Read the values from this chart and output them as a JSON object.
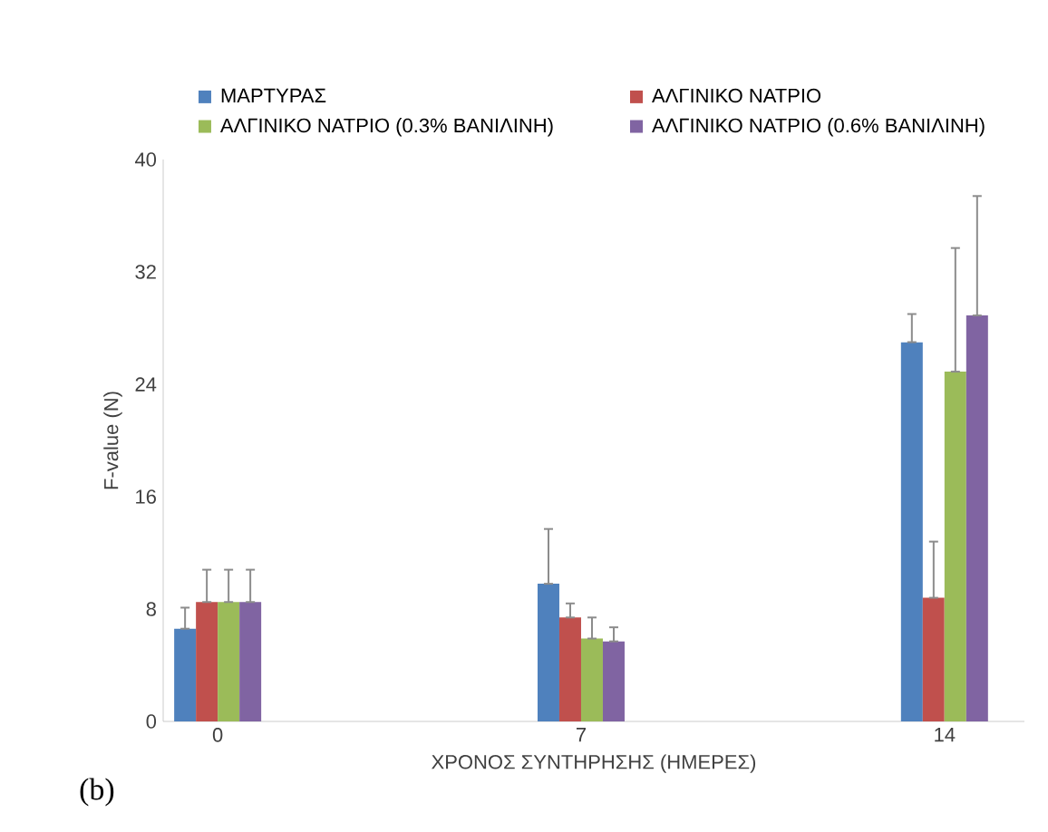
{
  "chart_data": {
    "type": "bar",
    "xlabel": "ΧΡΟΝΟΣ ΣΥΝΤΗΡΗΣΗΣ (ΗΜΕΡΕΣ)",
    "ylabel": "F-value (N)",
    "categories": [
      "0",
      "7",
      "14"
    ],
    "series": [
      {
        "name": "ΜΑΡΤΥΡΑΣ",
        "color": "#4f81bd",
        "values": [
          6.6,
          9.8,
          27
        ],
        "errors": [
          [
            6.6,
            8.1
          ],
          [
            9.8,
            13.7
          ],
          [
            27,
            29
          ]
        ]
      },
      {
        "name": "ΑΛΓΙΝΙΚΟ ΝΑΤΡΙΟ",
        "color": "#c0504d",
        "values": [
          8.5,
          7.4,
          8.8
        ],
        "errors": [
          [
            8.5,
            10.8
          ],
          [
            7.4,
            8.4
          ],
          [
            8.8,
            12.8
          ]
        ]
      },
      {
        "name": "ΑΛΓΙΝΙΚΟ ΝΑΤΡΙΟ (0.3% ΒΑΝΙΛΙΝΗ)",
        "color": "#9bbb59",
        "values": [
          8.5,
          5.9,
          24.9
        ],
        "errors": [
          [
            8.5,
            10.8
          ],
          [
            5.9,
            7.4
          ],
          [
            24.9,
            33.7
          ]
        ]
      },
      {
        "name": "ΑΛΓΙΝΙΚΟ ΝΑΤΡΙΟ (0.6% ΒΑΝΙΛΙΝΗ)",
        "color": "#8064a2",
        "values": [
          8.5,
          5.7,
          28.9
        ],
        "errors": [
          [
            8.5,
            10.8
          ],
          [
            5.7,
            6.7
          ],
          [
            28.9,
            37.4
          ]
        ]
      }
    ],
    "ylim": [
      0,
      40
    ],
    "yticks": [
      0,
      8,
      16,
      24,
      32,
      40
    ],
    "grid": false,
    "legend": "top",
    "annotations": [
      "(b)"
    ]
  }
}
